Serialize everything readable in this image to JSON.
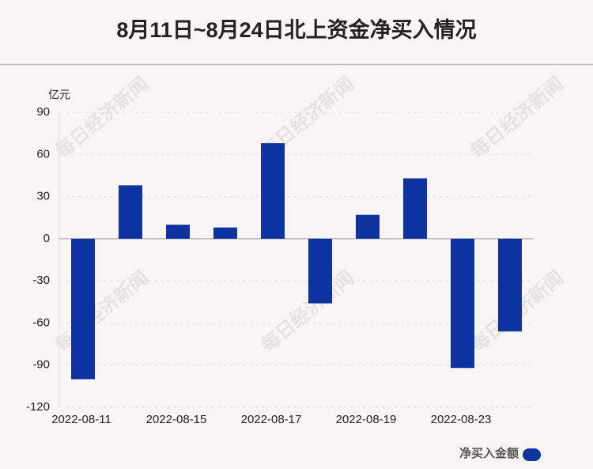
{
  "chart_data": {
    "type": "bar",
    "title": "8月11日~8月24日北上资金净买入情况",
    "y_unit": "亿元",
    "watermark": "每日经济新闻",
    "categories": [
      "2022-08-11",
      null,
      "2022-08-15",
      null,
      "2022-08-17",
      null,
      "2022-08-19",
      null,
      "2022-08-23",
      null
    ],
    "series": [
      {
        "name": "净买入金额",
        "color": "#0c339f",
        "values": [
          -100,
          38,
          10,
          8,
          68,
          -46,
          17,
          43,
          -92,
          -66
        ]
      }
    ],
    "ylim": [
      -120,
      90
    ],
    "yticks": [
      90,
      60,
      30,
      0,
      -30,
      -60,
      -90,
      -120
    ],
    "grid": true,
    "legend": "bottom-right"
  }
}
